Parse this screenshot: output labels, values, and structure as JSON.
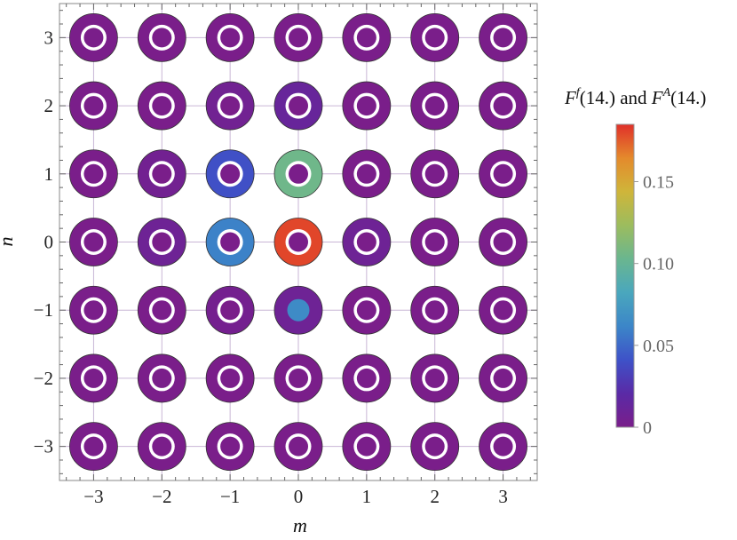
{
  "chart_data": {
    "type": "heatmap",
    "title": "",
    "xlabel": "m",
    "ylabel": "n",
    "x_ticks": [
      -3,
      -2,
      -1,
      0,
      1,
      2,
      3
    ],
    "y_ticks": [
      -3,
      -2,
      -1,
      0,
      1,
      2,
      3
    ],
    "x_tick_labels": [
      "−3",
      "−2",
      "−1",
      "0",
      "1",
      "2",
      "3"
    ],
    "y_tick_labels": [
      "−3",
      "−2",
      "−1",
      "0",
      "1",
      "2",
      "3"
    ],
    "xlim": [
      -3.5,
      3.5
    ],
    "ylim": [
      -3.5,
      3.5
    ],
    "grid": true,
    "legend": {
      "title_parts": [
        "F",
        "f",
        "(14.) and ",
        "F",
        "A",
        "(14.)"
      ],
      "placement": "right",
      "range": [
        0,
        0.185
      ],
      "ticks": [
        0,
        0.05,
        0.1,
        0.15
      ],
      "tick_labels": [
        "0",
        "0.05",
        "0.10",
        "0.15"
      ]
    },
    "description_fields": [
      "F_f outer ring",
      "F_A inner disc"
    ],
    "points": [
      {
        "m": -3,
        "n": 3,
        "outer": 0.0,
        "inner": 0.0
      },
      {
        "m": -2,
        "n": 3,
        "outer": 0.0,
        "inner": 0.0
      },
      {
        "m": -1,
        "n": 3,
        "outer": 0.0,
        "inner": 0.0
      },
      {
        "m": 0,
        "n": 3,
        "outer": 0.0,
        "inner": 0.0
      },
      {
        "m": 1,
        "n": 3,
        "outer": 0.0,
        "inner": 0.0
      },
      {
        "m": 2,
        "n": 3,
        "outer": 0.0,
        "inner": 0.0
      },
      {
        "m": 3,
        "n": 3,
        "outer": 0.0,
        "inner": 0.0
      },
      {
        "m": -3,
        "n": 2,
        "outer": 0.0,
        "inner": 0.0
      },
      {
        "m": -2,
        "n": 2,
        "outer": 0.0,
        "inner": 0.0
      },
      {
        "m": -1,
        "n": 2,
        "outer": 0.006,
        "inner": 0.0
      },
      {
        "m": 0,
        "n": 2,
        "outer": 0.012,
        "inner": 0.0
      },
      {
        "m": 1,
        "n": 2,
        "outer": 0.0,
        "inner": 0.0
      },
      {
        "m": 2,
        "n": 2,
        "outer": 0.0,
        "inner": 0.0
      },
      {
        "m": 3,
        "n": 2,
        "outer": 0.0,
        "inner": 0.0
      },
      {
        "m": -3,
        "n": 1,
        "outer": 0.0,
        "inner": 0.0
      },
      {
        "m": -2,
        "n": 1,
        "outer": 0.005,
        "inner": 0.0
      },
      {
        "m": -1,
        "n": 1,
        "outer": 0.04,
        "inner": 0.0
      },
      {
        "m": 0,
        "n": 1,
        "outer": 0.105,
        "inner": 0.0
      },
      {
        "m": 1,
        "n": 1,
        "outer": 0.0,
        "inner": 0.0
      },
      {
        "m": 2,
        "n": 1,
        "outer": 0.0,
        "inner": 0.0
      },
      {
        "m": 3,
        "n": 1,
        "outer": 0.0,
        "inner": 0.0
      },
      {
        "m": -3,
        "n": 0,
        "outer": 0.0,
        "inner": 0.0
      },
      {
        "m": -2,
        "n": 0,
        "outer": 0.008,
        "inner": 0.0
      },
      {
        "m": -1,
        "n": 0,
        "outer": 0.06,
        "inner": 0.0
      },
      {
        "m": 0,
        "n": 0,
        "outer": 0.18,
        "inner": 0.0
      },
      {
        "m": 1,
        "n": 0,
        "outer": 0.008,
        "inner": 0.0
      },
      {
        "m": 2,
        "n": 0,
        "outer": 0.0,
        "inner": 0.0
      },
      {
        "m": 3,
        "n": 0,
        "outer": 0.0,
        "inner": 0.0
      },
      {
        "m": -3,
        "n": -1,
        "outer": 0.0,
        "inner": 0.0
      },
      {
        "m": -2,
        "n": -1,
        "outer": 0.0,
        "inner": 0.0
      },
      {
        "m": -1,
        "n": -1,
        "outer": 0.004,
        "inner": 0.0
      },
      {
        "m": 0,
        "n": -1,
        "outer": 0.008,
        "inner": 0.065
      },
      {
        "m": 1,
        "n": -1,
        "outer": 0.0,
        "inner": 0.0
      },
      {
        "m": 2,
        "n": -1,
        "outer": 0.0,
        "inner": 0.0
      },
      {
        "m": 3,
        "n": -1,
        "outer": 0.0,
        "inner": 0.0
      },
      {
        "m": -3,
        "n": -2,
        "outer": 0.0,
        "inner": 0.0
      },
      {
        "m": -2,
        "n": -2,
        "outer": 0.0,
        "inner": 0.0
      },
      {
        "m": -1,
        "n": -2,
        "outer": 0.0,
        "inner": 0.0
      },
      {
        "m": 0,
        "n": -2,
        "outer": 0.0,
        "inner": 0.0
      },
      {
        "m": 1,
        "n": -2,
        "outer": 0.0,
        "inner": 0.0
      },
      {
        "m": 2,
        "n": -2,
        "outer": 0.0,
        "inner": 0.0
      },
      {
        "m": 3,
        "n": -2,
        "outer": 0.0,
        "inner": 0.0
      },
      {
        "m": -3,
        "n": -3,
        "outer": 0.0,
        "inner": 0.0
      },
      {
        "m": -2,
        "n": -3,
        "outer": 0.0,
        "inner": 0.0
      },
      {
        "m": -1,
        "n": -3,
        "outer": 0.0,
        "inner": 0.0
      },
      {
        "m": 0,
        "n": -3,
        "outer": 0.0,
        "inner": 0.0
      },
      {
        "m": 1,
        "n": -3,
        "outer": 0.0,
        "inner": 0.0
      },
      {
        "m": 2,
        "n": -3,
        "outer": 0.0,
        "inner": 0.0
      },
      {
        "m": 3,
        "n": -3,
        "outer": 0.0,
        "inner": 0.0
      }
    ],
    "colormap": [
      "#7a1e8a",
      "#5a2aa6",
      "#3e52c8",
      "#3c86c8",
      "#4aa7bd",
      "#6ab68f",
      "#9cbc5e",
      "#cfb53a",
      "#e48a2c",
      "#e0302a"
    ]
  }
}
